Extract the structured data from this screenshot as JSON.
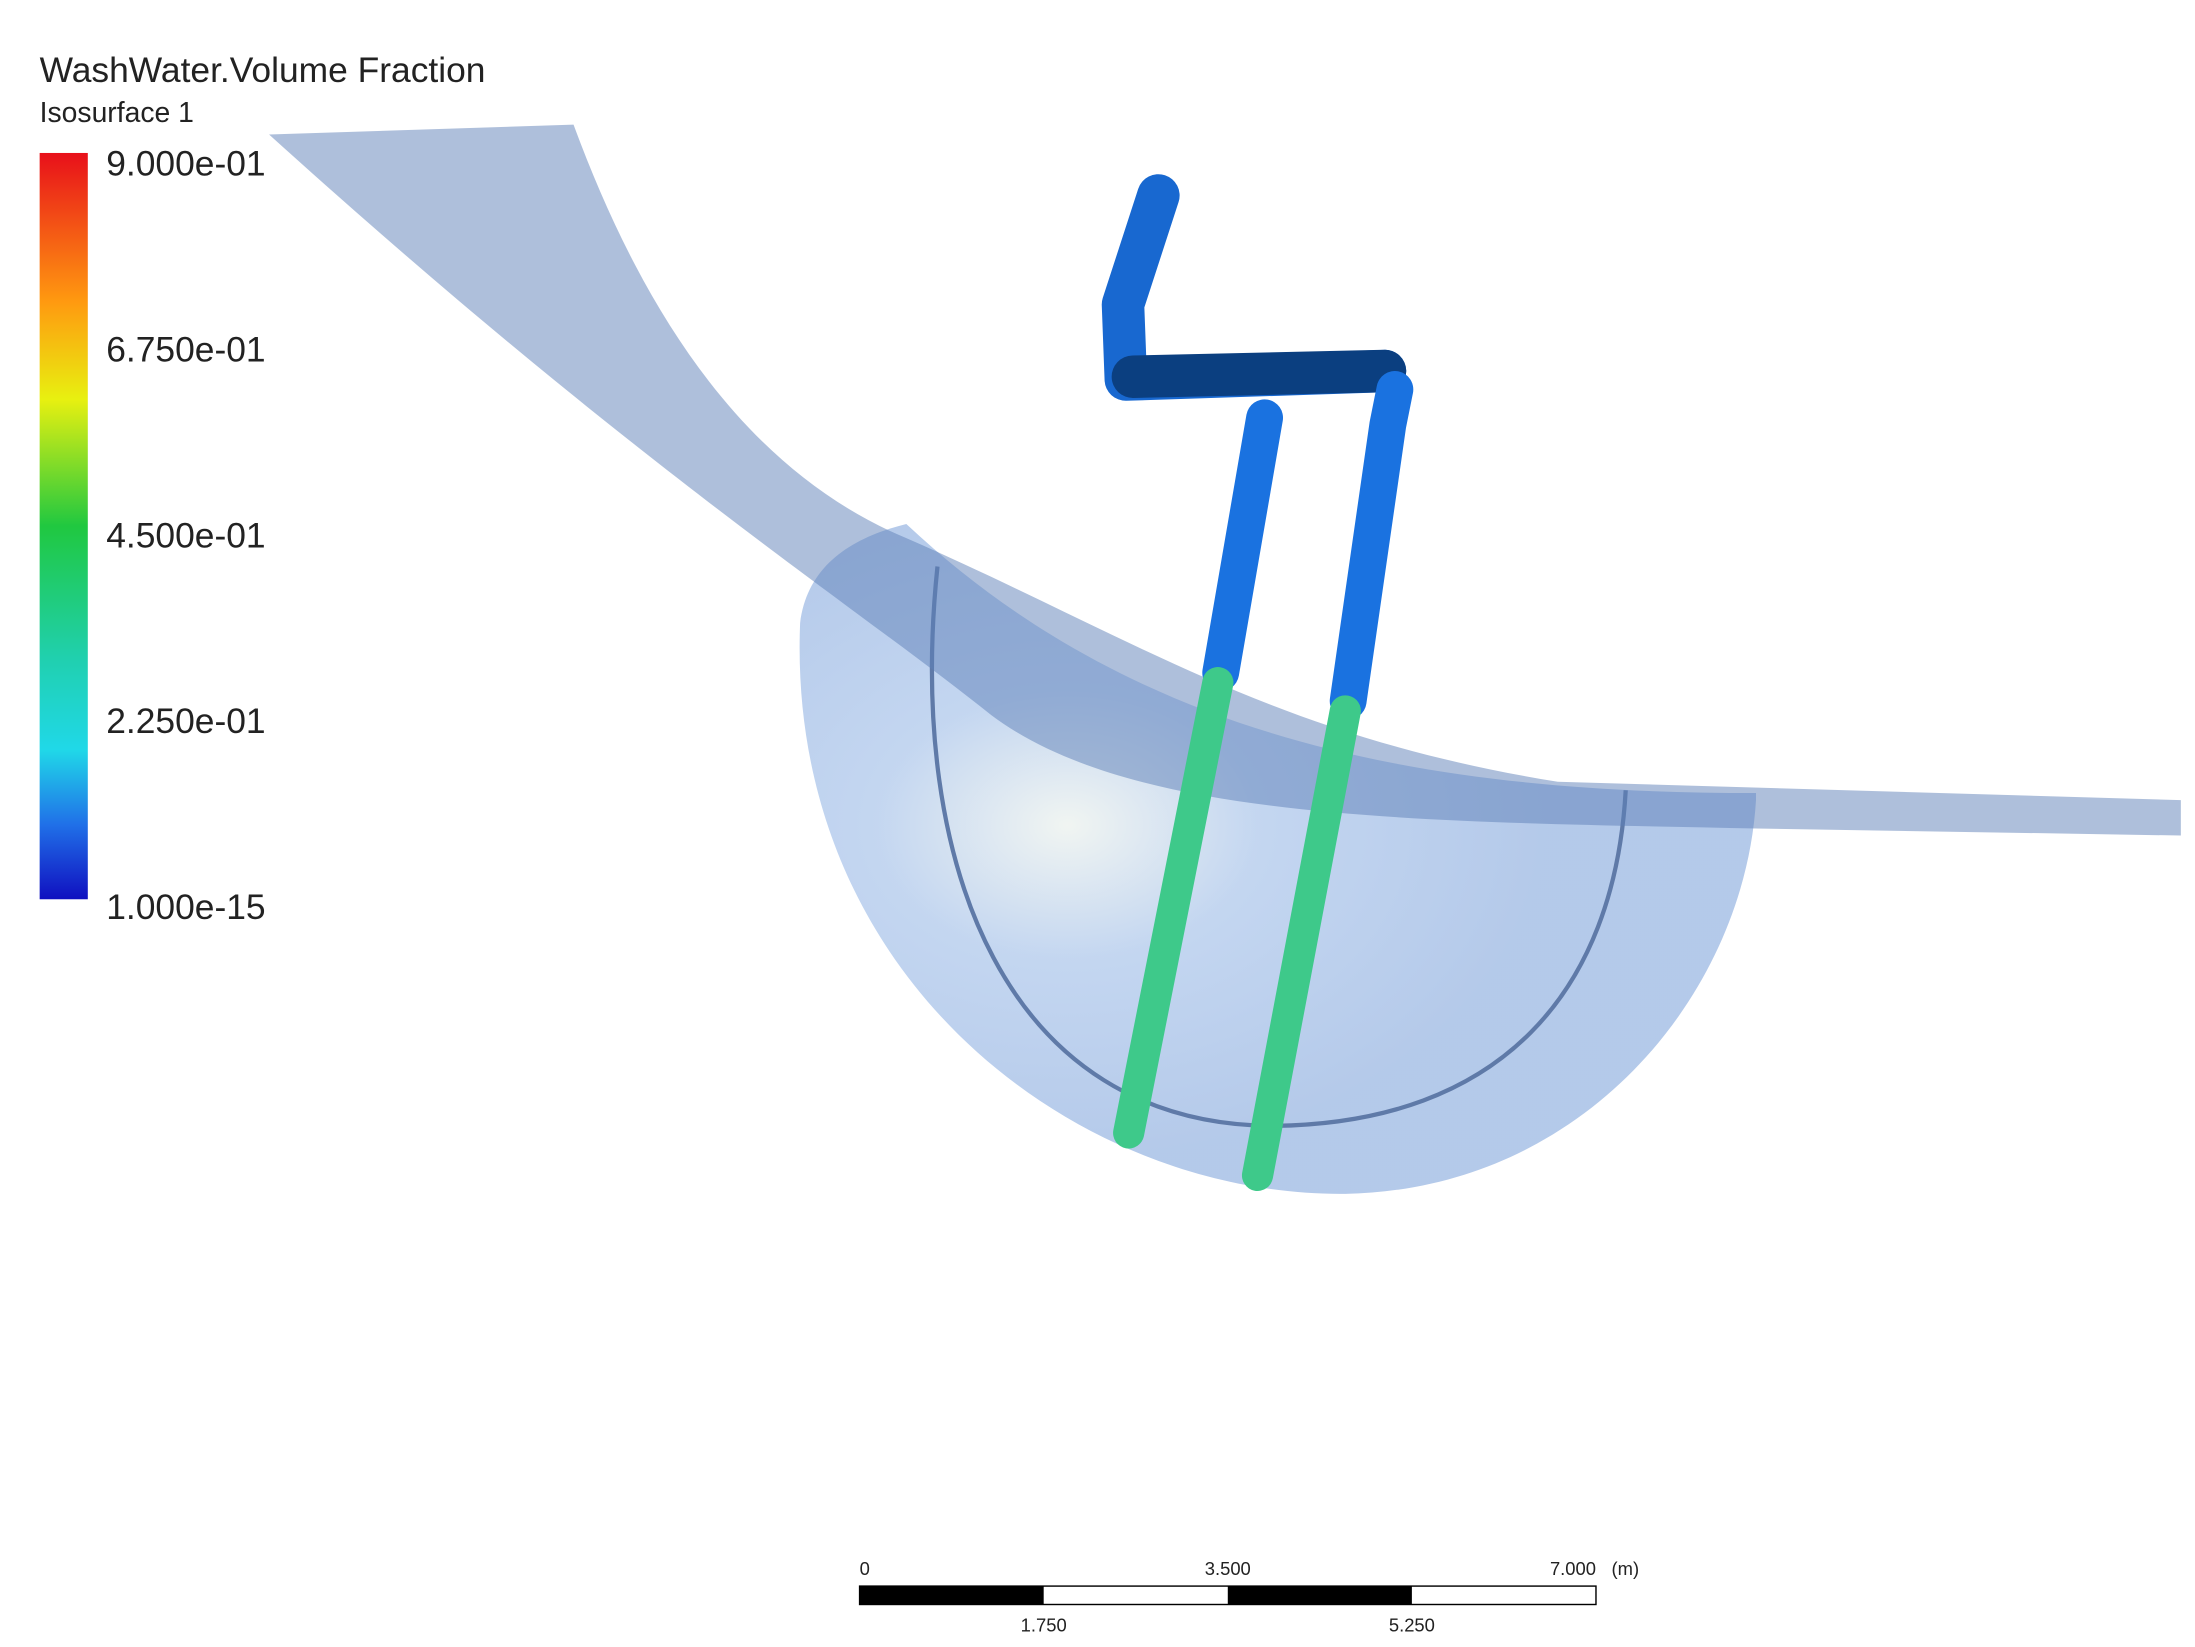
{
  "legend": {
    "title": "WashWater.Volume Fraction",
    "subtitle": "Isosurface 1",
    "labels": [
      "9.000e-01",
      "6.750e-01",
      "4.500e-01",
      "2.250e-01",
      "1.000e-15"
    ]
  },
  "scale_bar": {
    "top_labels": [
      "0",
      "3.500",
      "7.000"
    ],
    "unit": "(m)",
    "bottom_labels": [
      "1.750",
      "5.250"
    ]
  }
}
